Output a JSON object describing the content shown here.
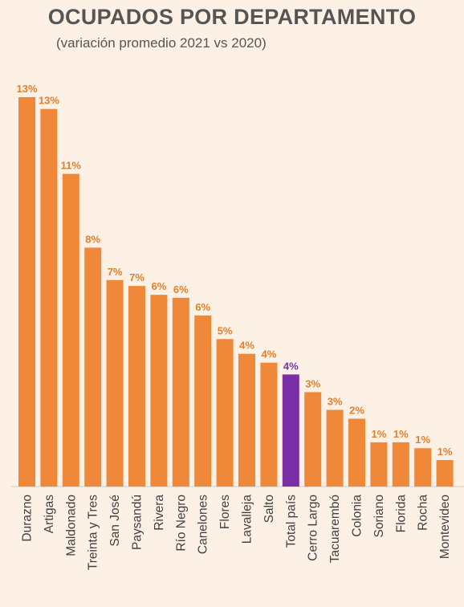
{
  "title": "OCUPADOS POR DEPARTAMENTO",
  "subtitle": "(variación promedio 2021 vs 2020)",
  "colors": {
    "bar": "#f0883a",
    "highlight": "#7b2fa6",
    "label": "#e07f2c",
    "highlight_label": "#7b2fa6",
    "axis_text": "#404040"
  },
  "chart_data": {
    "type": "bar",
    "title": "OCUPADOS POR DEPARTAMENTO",
    "subtitle": "(variación promedio 2021 vs 2020)",
    "categories": [
      "Durazno",
      "Artigas",
      "Maldonado",
      "Treinta y Tres",
      "San José",
      "Paysandú",
      "Rivera",
      "Río Negro",
      "Canelones",
      "Flores",
      "Lavalleja",
      "Salto",
      "Total país",
      "Cerro Largo",
      "Tacuarembó",
      "Colonia",
      "Soriano",
      "Florida",
      "Rocha",
      "Montevideo"
    ],
    "values": [
      13.2,
      12.8,
      10.6,
      8.1,
      7.0,
      6.8,
      6.5,
      6.4,
      5.8,
      5.0,
      4.5,
      4.2,
      3.8,
      3.2,
      2.6,
      2.3,
      1.5,
      1.5,
      1.3,
      0.9
    ],
    "value_labels": [
      "13%",
      "13%",
      "11%",
      "8%",
      "7%",
      "7%",
      "6%",
      "6%",
      "6%",
      "5%",
      "4%",
      "4%",
      "4%",
      "3%",
      "3%",
      "2%",
      "1%",
      "1%",
      "1%",
      "1%"
    ],
    "highlight": "Total país",
    "ylim": [
      0,
      13.2
    ],
    "grid": false,
    "legend": "none"
  }
}
